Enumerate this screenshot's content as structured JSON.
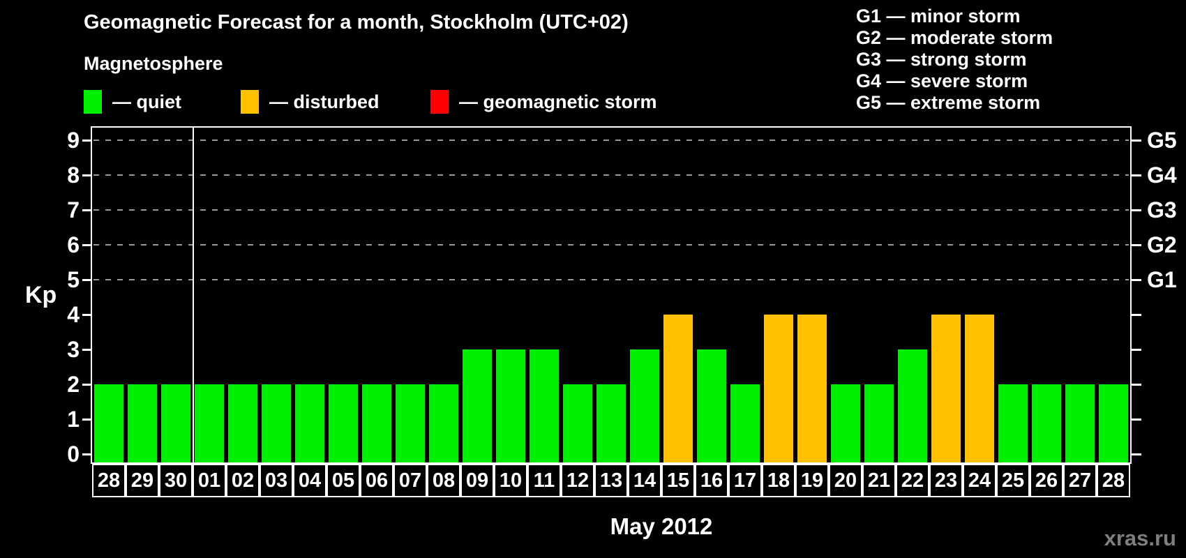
{
  "header": {
    "title": "Geomagnetic Forecast for a month, Stockholm (UTC+02)",
    "subtitle": "Magnetosphere",
    "legend": [
      {
        "status": "quiet",
        "label": "— quiet",
        "color": "#00ee00"
      },
      {
        "status": "disturbed",
        "label": "— disturbed",
        "color": "#ffc000"
      },
      {
        "status": "storm",
        "label": "— geomagnetic storm",
        "color": "#ff0000"
      }
    ],
    "g_scale_legend": [
      "G1 — minor storm",
      "G2 — moderate storm",
      "G3 — strong storm",
      "G4 — severe storm",
      "G5 — extreme storm"
    ]
  },
  "footer": {
    "month_label": "May 2012",
    "watermark": "xras.ru"
  },
  "chart_data": {
    "type": "bar",
    "title": "Geomagnetic Forecast for a month, Stockholm (UTC+02)",
    "xlabel": "May 2012",
    "ylabel": "Kp",
    "ylim": [
      0,
      9
    ],
    "y_ticks": [
      0,
      1,
      2,
      3,
      4,
      5,
      6,
      7,
      8,
      9
    ],
    "gridlines_at_kp": [
      5,
      6,
      7,
      8,
      9
    ],
    "grid_style": "dashed",
    "legend_position": "top",
    "right_axis": [
      {
        "kp": 5,
        "label": "G1"
      },
      {
        "kp": 6,
        "label": "G2"
      },
      {
        "kp": 7,
        "label": "G3"
      },
      {
        "kp": 8,
        "label": "G4"
      },
      {
        "kp": 9,
        "label": "G5"
      }
    ],
    "prev_month_trailing_days": 3,
    "categories": [
      "28",
      "29",
      "30",
      "01",
      "02",
      "03",
      "04",
      "05",
      "06",
      "07",
      "08",
      "09",
      "10",
      "11",
      "12",
      "13",
      "14",
      "15",
      "16",
      "17",
      "18",
      "19",
      "20",
      "21",
      "22",
      "23",
      "24",
      "25",
      "26",
      "27",
      "28"
    ],
    "values": [
      2,
      2,
      2,
      2,
      2,
      2,
      2,
      2,
      2,
      2,
      2,
      3,
      3,
      3,
      2,
      2,
      3,
      4,
      3,
      2,
      4,
      4,
      2,
      2,
      3,
      4,
      4,
      2,
      2,
      2,
      2
    ],
    "status": [
      "quiet",
      "quiet",
      "quiet",
      "quiet",
      "quiet",
      "quiet",
      "quiet",
      "quiet",
      "quiet",
      "quiet",
      "quiet",
      "quiet",
      "quiet",
      "quiet",
      "quiet",
      "quiet",
      "quiet",
      "disturbed",
      "quiet",
      "quiet",
      "disturbed",
      "disturbed",
      "quiet",
      "quiet",
      "quiet",
      "disturbed",
      "disturbed",
      "quiet",
      "quiet",
      "quiet",
      "quiet"
    ],
    "colors": {
      "quiet": "#00ee00",
      "disturbed": "#ffc000",
      "storm": "#ff0000"
    }
  }
}
